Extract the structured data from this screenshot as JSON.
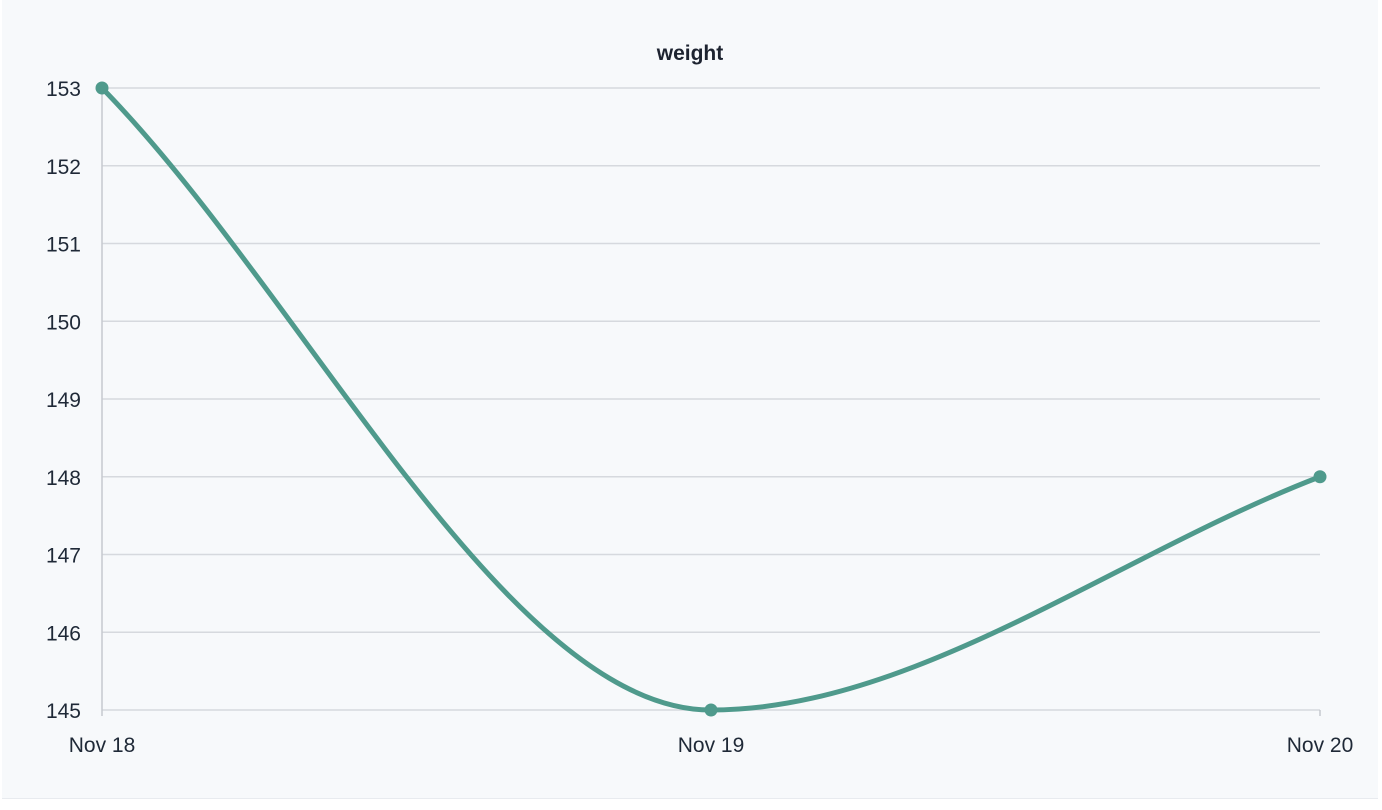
{
  "chart_data": {
    "type": "line",
    "title": "weight",
    "xlabel": "",
    "ylabel": "",
    "categories": [
      "Nov 18",
      "Nov 19",
      "Nov 20"
    ],
    "series": [
      {
        "values": [
          153,
          145,
          148
        ],
        "color": "#4f9a8c"
      }
    ],
    "ylim": [
      145,
      153
    ],
    "yticks": [
      145,
      146,
      147,
      148,
      149,
      150,
      151,
      152,
      153
    ],
    "grid": true,
    "legend": "none"
  }
}
